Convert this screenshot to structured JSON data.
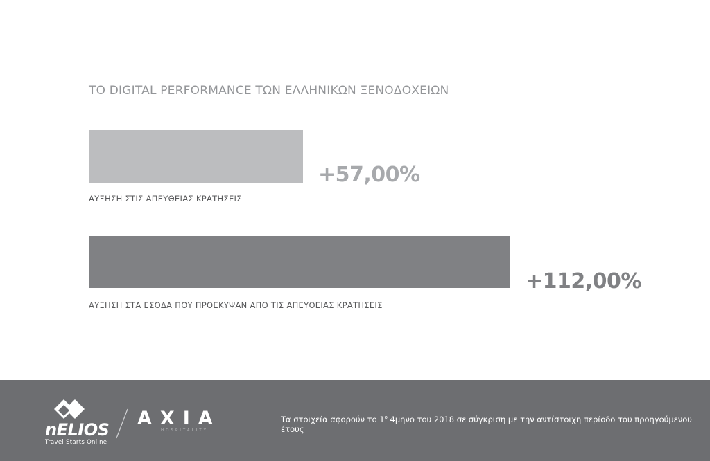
{
  "chart_data": {
    "type": "bar",
    "orientation": "horizontal",
    "title": "ΤΟ DIGITAL PERFORMANCE ΤΩΝ ΕΛΛΗΝΙΚΩΝ ΞΕΝΟΔΟΧΕΙΩΝ",
    "categories": [
      "ΑΥΞΗΣΗ ΣΤΙΣ ΑΠΕΥΘΕΙΑΣ ΚΡΑΤΗΣΕΙΣ",
      "ΑΥΞΗΣΗ ΣΤΑ ΕΣΟΔΑ ΠΟΥ ΠΡΟΕΚΥΨΑΝ ΑΠΟ ΤΙΣ ΑΠΕΥΘΕΙΑΣ ΚΡΑΤΗΣΕΙΣ"
    ],
    "values": [
      57,
      112
    ],
    "value_labels": [
      "+57,00%",
      "+112,00%"
    ],
    "colors": [
      "#bcbdbf",
      "#808184"
    ],
    "value_label_colors": [
      "#a7a9ac",
      "#808184"
    ]
  },
  "footer": {
    "note_before": "Τα στοιχεία αφορούν το 1",
    "note_sup": "ο",
    "note_after": " 4μηνο του 2018 σε σύγκριση με την αντίστοιχη περίοδο του προηγούμενου έτους",
    "nelios_brand": "nELIOS",
    "nelios_tagline": "Travel Starts Online",
    "axia_brand": "AXIA",
    "axia_sub": "HOSPITALITY",
    "background": "#6d6e71"
  }
}
